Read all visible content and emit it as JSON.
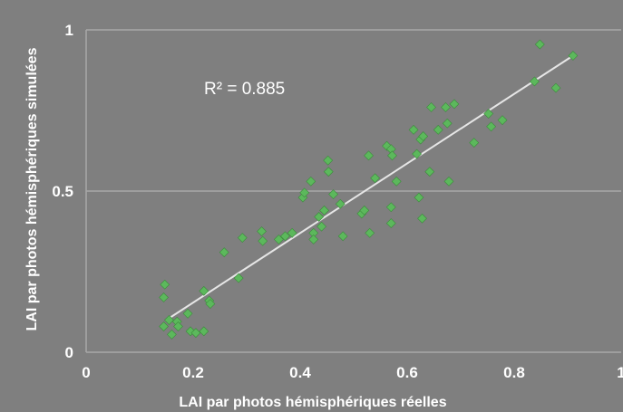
{
  "chart_data": {
    "type": "scatter",
    "xlabel": "LAI par photos hémisphériques réelles",
    "ylabel": "LAI par photos hémisphériques simulées",
    "xlim": [
      0,
      1
    ],
    "ylim": [
      0,
      1
    ],
    "x_ticks": [
      "0",
      "0.2",
      "0.4",
      "0.6",
      "0.8",
      "1"
    ],
    "y_ticks": [
      "0",
      "0.5",
      "1"
    ],
    "grid": "horizontal",
    "annotation": "R² = 0.885",
    "colors": {
      "background": "#7f7f7f",
      "points": "#5cb85c",
      "trendline": "#e6e6e6",
      "grid": "#a8a8a8"
    },
    "trendline": {
      "x": [
        0.15,
        0.91
      ],
      "y": [
        0.1,
        0.92
      ]
    },
    "points": [
      [
        0.147,
        0.21
      ],
      [
        0.145,
        0.17
      ],
      [
        0.145,
        0.08
      ],
      [
        0.155,
        0.1
      ],
      [
        0.16,
        0.055
      ],
      [
        0.17,
        0.095
      ],
      [
        0.172,
        0.08
      ],
      [
        0.19,
        0.12
      ],
      [
        0.195,
        0.065
      ],
      [
        0.205,
        0.06
      ],
      [
        0.22,
        0.065
      ],
      [
        0.22,
        0.19
      ],
      [
        0.23,
        0.16
      ],
      [
        0.232,
        0.15
      ],
      [
        0.258,
        0.31
      ],
      [
        0.285,
        0.23
      ],
      [
        0.292,
        0.355
      ],
      [
        0.328,
        0.375
      ],
      [
        0.33,
        0.345
      ],
      [
        0.36,
        0.35
      ],
      [
        0.372,
        0.36
      ],
      [
        0.385,
        0.37
      ],
      [
        0.405,
        0.48
      ],
      [
        0.408,
        0.495
      ],
      [
        0.42,
        0.53
      ],
      [
        0.425,
        0.37
      ],
      [
        0.425,
        0.35
      ],
      [
        0.435,
        0.42
      ],
      [
        0.44,
        0.39
      ],
      [
        0.445,
        0.44
      ],
      [
        0.452,
        0.595
      ],
      [
        0.453,
        0.56
      ],
      [
        0.462,
        0.49
      ],
      [
        0.475,
        0.46
      ],
      [
        0.48,
        0.36
      ],
      [
        0.515,
        0.43
      ],
      [
        0.52,
        0.44
      ],
      [
        0.528,
        0.61
      ],
      [
        0.53,
        0.37
      ],
      [
        0.54,
        0.54
      ],
      [
        0.562,
        0.64
      ],
      [
        0.57,
        0.63
      ],
      [
        0.572,
        0.61
      ],
      [
        0.57,
        0.45
      ],
      [
        0.57,
        0.4
      ],
      [
        0.58,
        0.53
      ],
      [
        0.612,
        0.69
      ],
      [
        0.618,
        0.615
      ],
      [
        0.622,
        0.48
      ],
      [
        0.625,
        0.66
      ],
      [
        0.628,
        0.415
      ],
      [
        0.63,
        0.67
      ],
      [
        0.642,
        0.56
      ],
      [
        0.645,
        0.76
      ],
      [
        0.658,
        0.69
      ],
      [
        0.672,
        0.76
      ],
      [
        0.675,
        0.71
      ],
      [
        0.678,
        0.53
      ],
      [
        0.688,
        0.77
      ],
      [
        0.725,
        0.65
      ],
      [
        0.752,
        0.74
      ],
      [
        0.757,
        0.7
      ],
      [
        0.778,
        0.72
      ],
      [
        0.838,
        0.84
      ],
      [
        0.848,
        0.955
      ],
      [
        0.878,
        0.82
      ],
      [
        0.91,
        0.92
      ]
    ]
  }
}
